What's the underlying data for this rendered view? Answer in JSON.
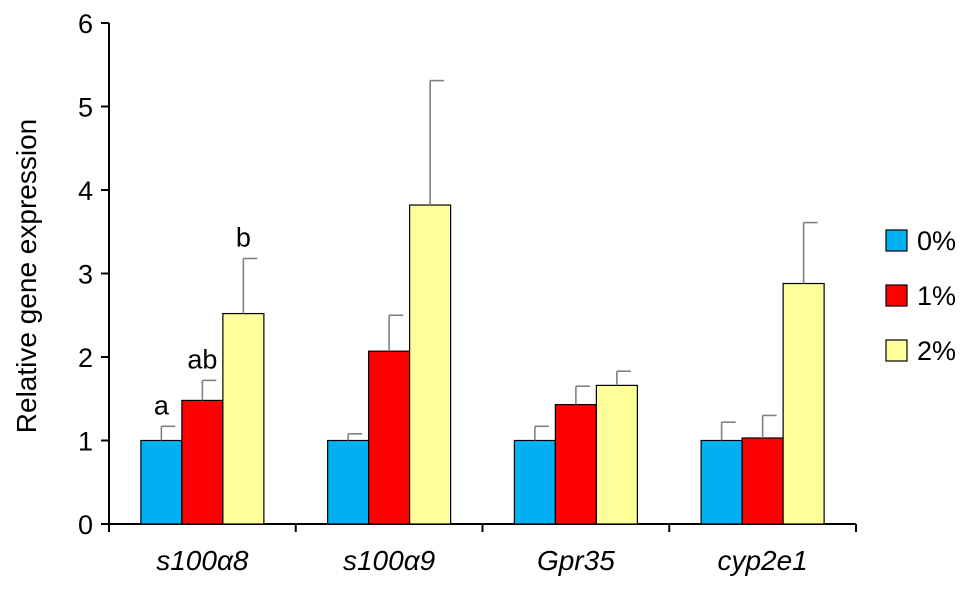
{
  "chart_data": {
    "type": "bar",
    "title": "",
    "xlabel": "",
    "ylabel": "Relative gene expression",
    "ylim": [
      0,
      6
    ],
    "yticks": [
      "0",
      "1",
      "2",
      "3",
      "4",
      "5",
      "6"
    ],
    "categories": [
      "s100α8",
      "s100α9",
      "Gpr35",
      "cyp2e1"
    ],
    "series": [
      {
        "name": "0%",
        "color": "#00b0f0",
        "values": [
          1.0,
          1.0,
          1.0,
          1.0
        ],
        "errors": [
          0.17,
          0.08,
          0.17,
          0.22
        ]
      },
      {
        "name": "1%",
        "color": "#ff0000",
        "values": [
          1.48,
          2.07,
          1.43,
          1.03
        ],
        "errors": [
          0.24,
          0.43,
          0.22,
          0.27
        ]
      },
      {
        "name": "2%",
        "color": "#ffff99",
        "values": [
          2.52,
          3.82,
          1.66,
          2.88
        ],
        "errors": [
          0.66,
          1.49,
          0.17,
          0.73
        ]
      }
    ],
    "annotations": [
      {
        "category": 0,
        "series": 0,
        "text": "a"
      },
      {
        "category": 0,
        "series": 1,
        "text": "ab"
      },
      {
        "category": 0,
        "series": 2,
        "text": "b"
      }
    ],
    "legend_position": "right",
    "grid": false
  }
}
